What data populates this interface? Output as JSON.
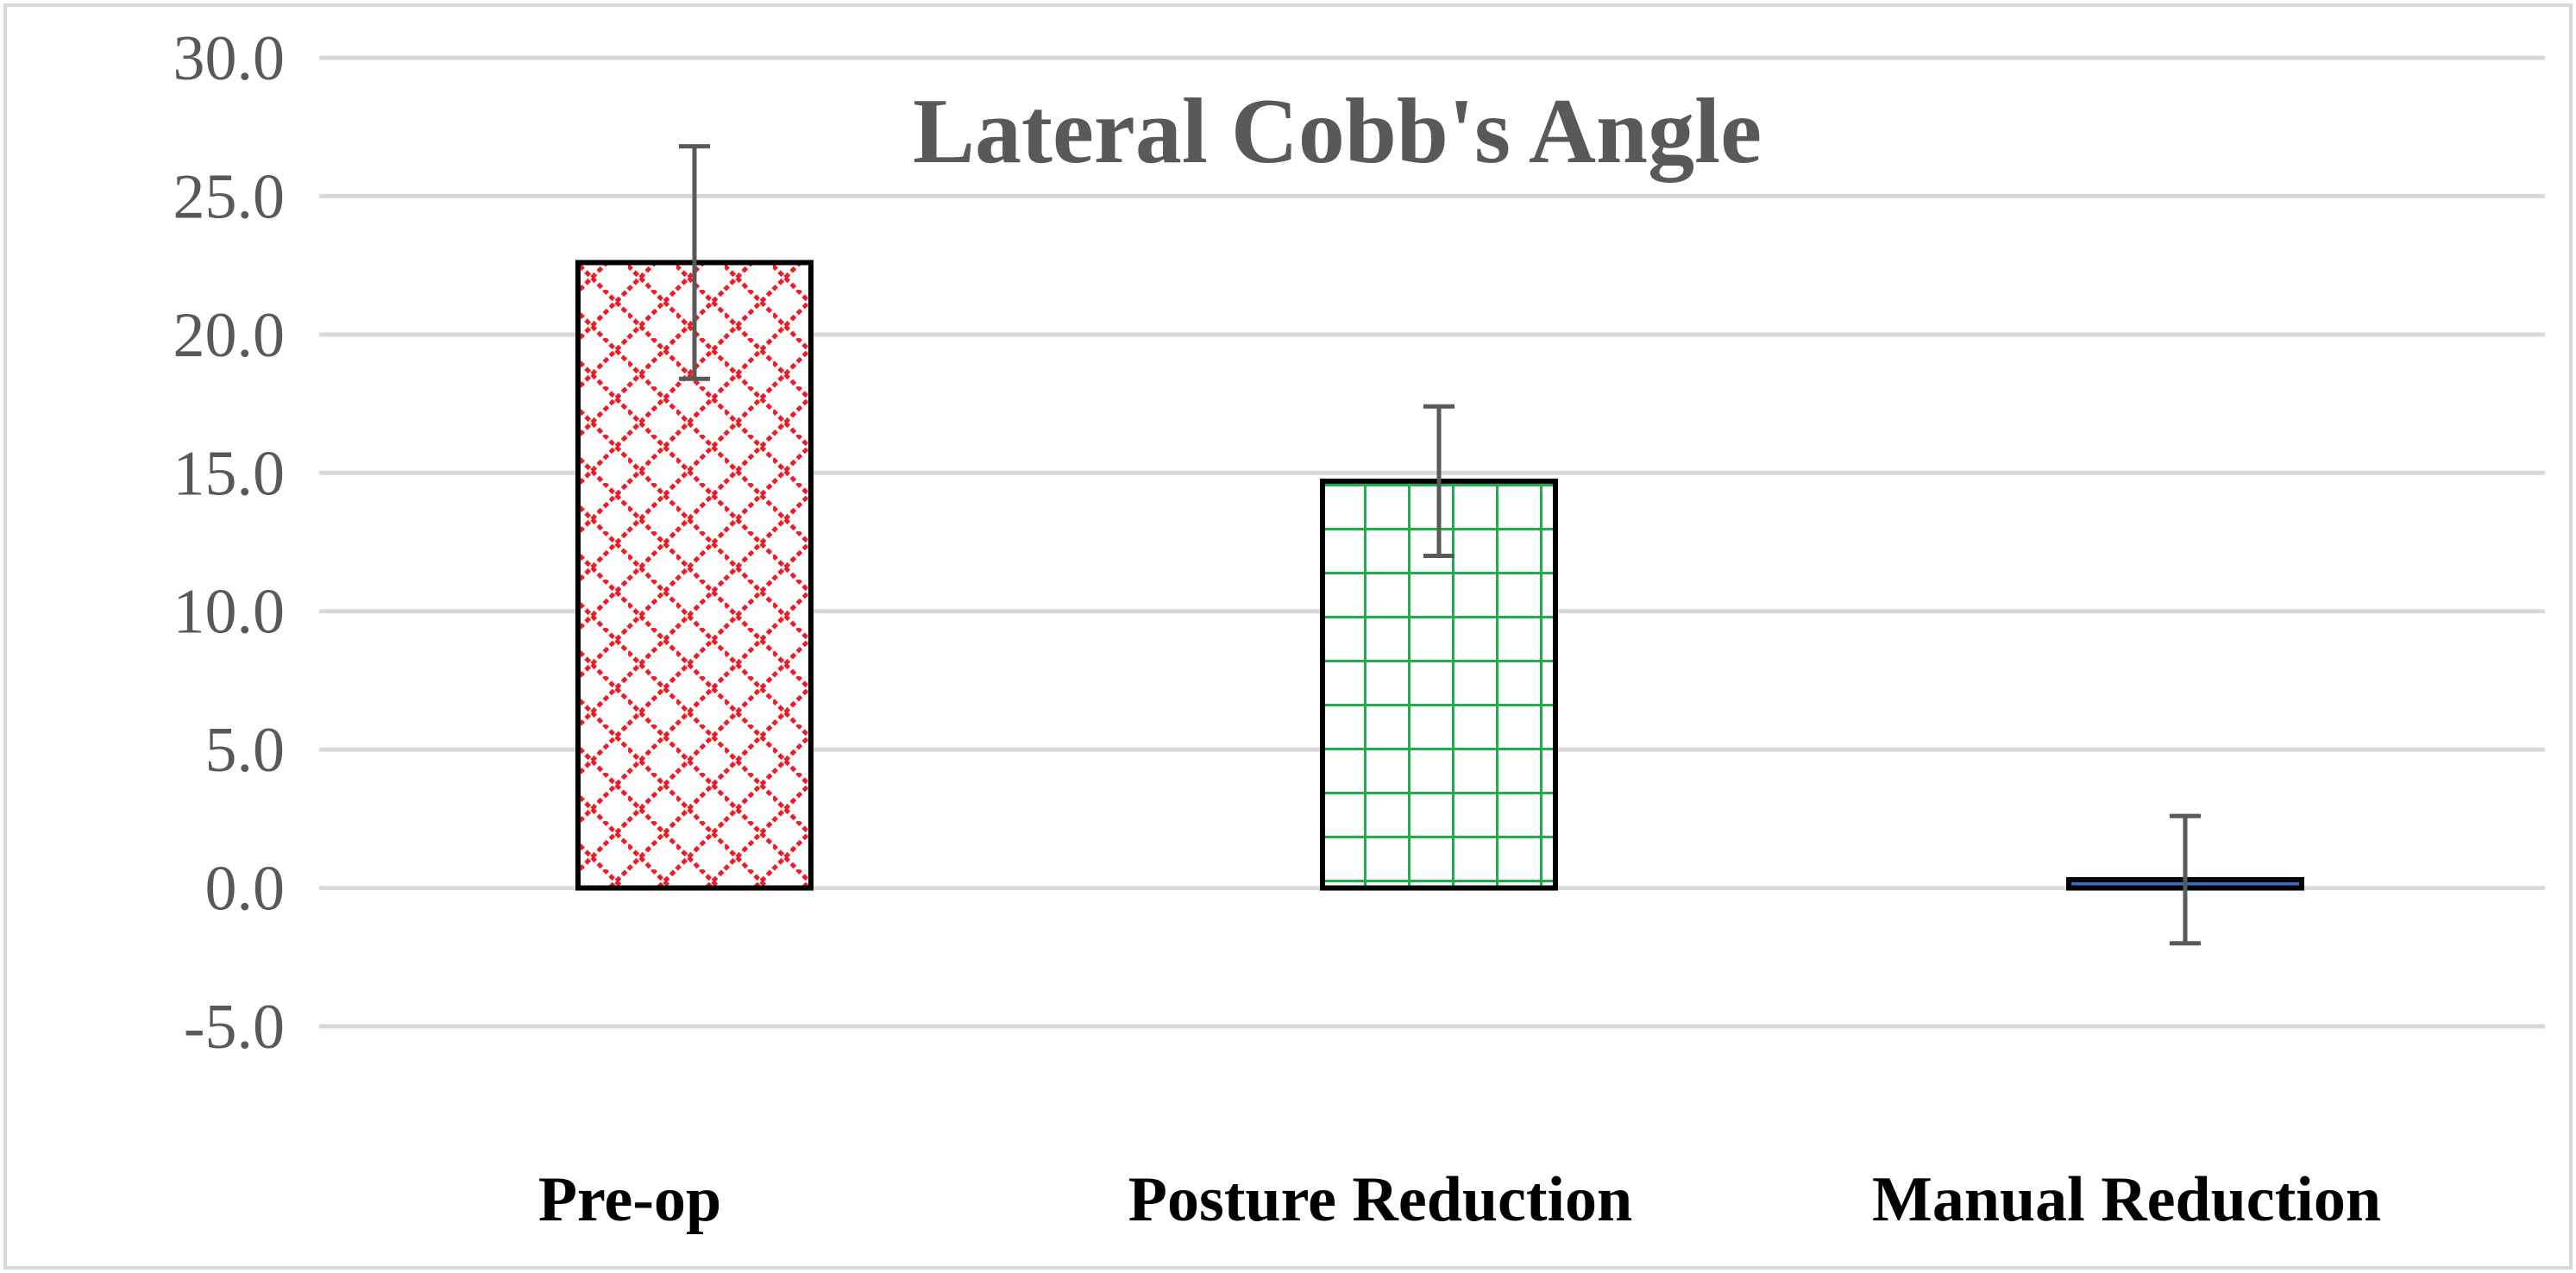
{
  "chart_data": {
    "type": "bar",
    "title": "Lateral Cobb's Angle",
    "categories": [
      "Pre-op",
      "Posture Reduction",
      "Manual Reduction"
    ],
    "values": [
      22.6,
      14.7,
      0.3
    ],
    "error_bars": [
      4.2,
      2.7,
      2.3
    ],
    "ylim": [
      -5.0,
      30.0
    ],
    "y_ticks": [
      "30.0",
      "25.0",
      "20.0",
      "15.0",
      "10.0",
      "5.0",
      "0.0",
      "-5.0"
    ],
    "y_tick_values": [
      30,
      25,
      20,
      15,
      10,
      5,
      0,
      -5
    ],
    "grid": true,
    "legend": "none",
    "bar_styles": [
      {
        "pattern": "red-diagonal-brick",
        "color": "#ee1c25"
      },
      {
        "pattern": "green-grid",
        "color": "#1fae4b"
      },
      {
        "pattern": "blue-solid",
        "color": "#2e6fd0"
      }
    ],
    "colors": {
      "gridline": "#d9d9d9",
      "axis_text": "#595959",
      "bar_outline": "#000000",
      "error_bar": "#595959"
    }
  }
}
